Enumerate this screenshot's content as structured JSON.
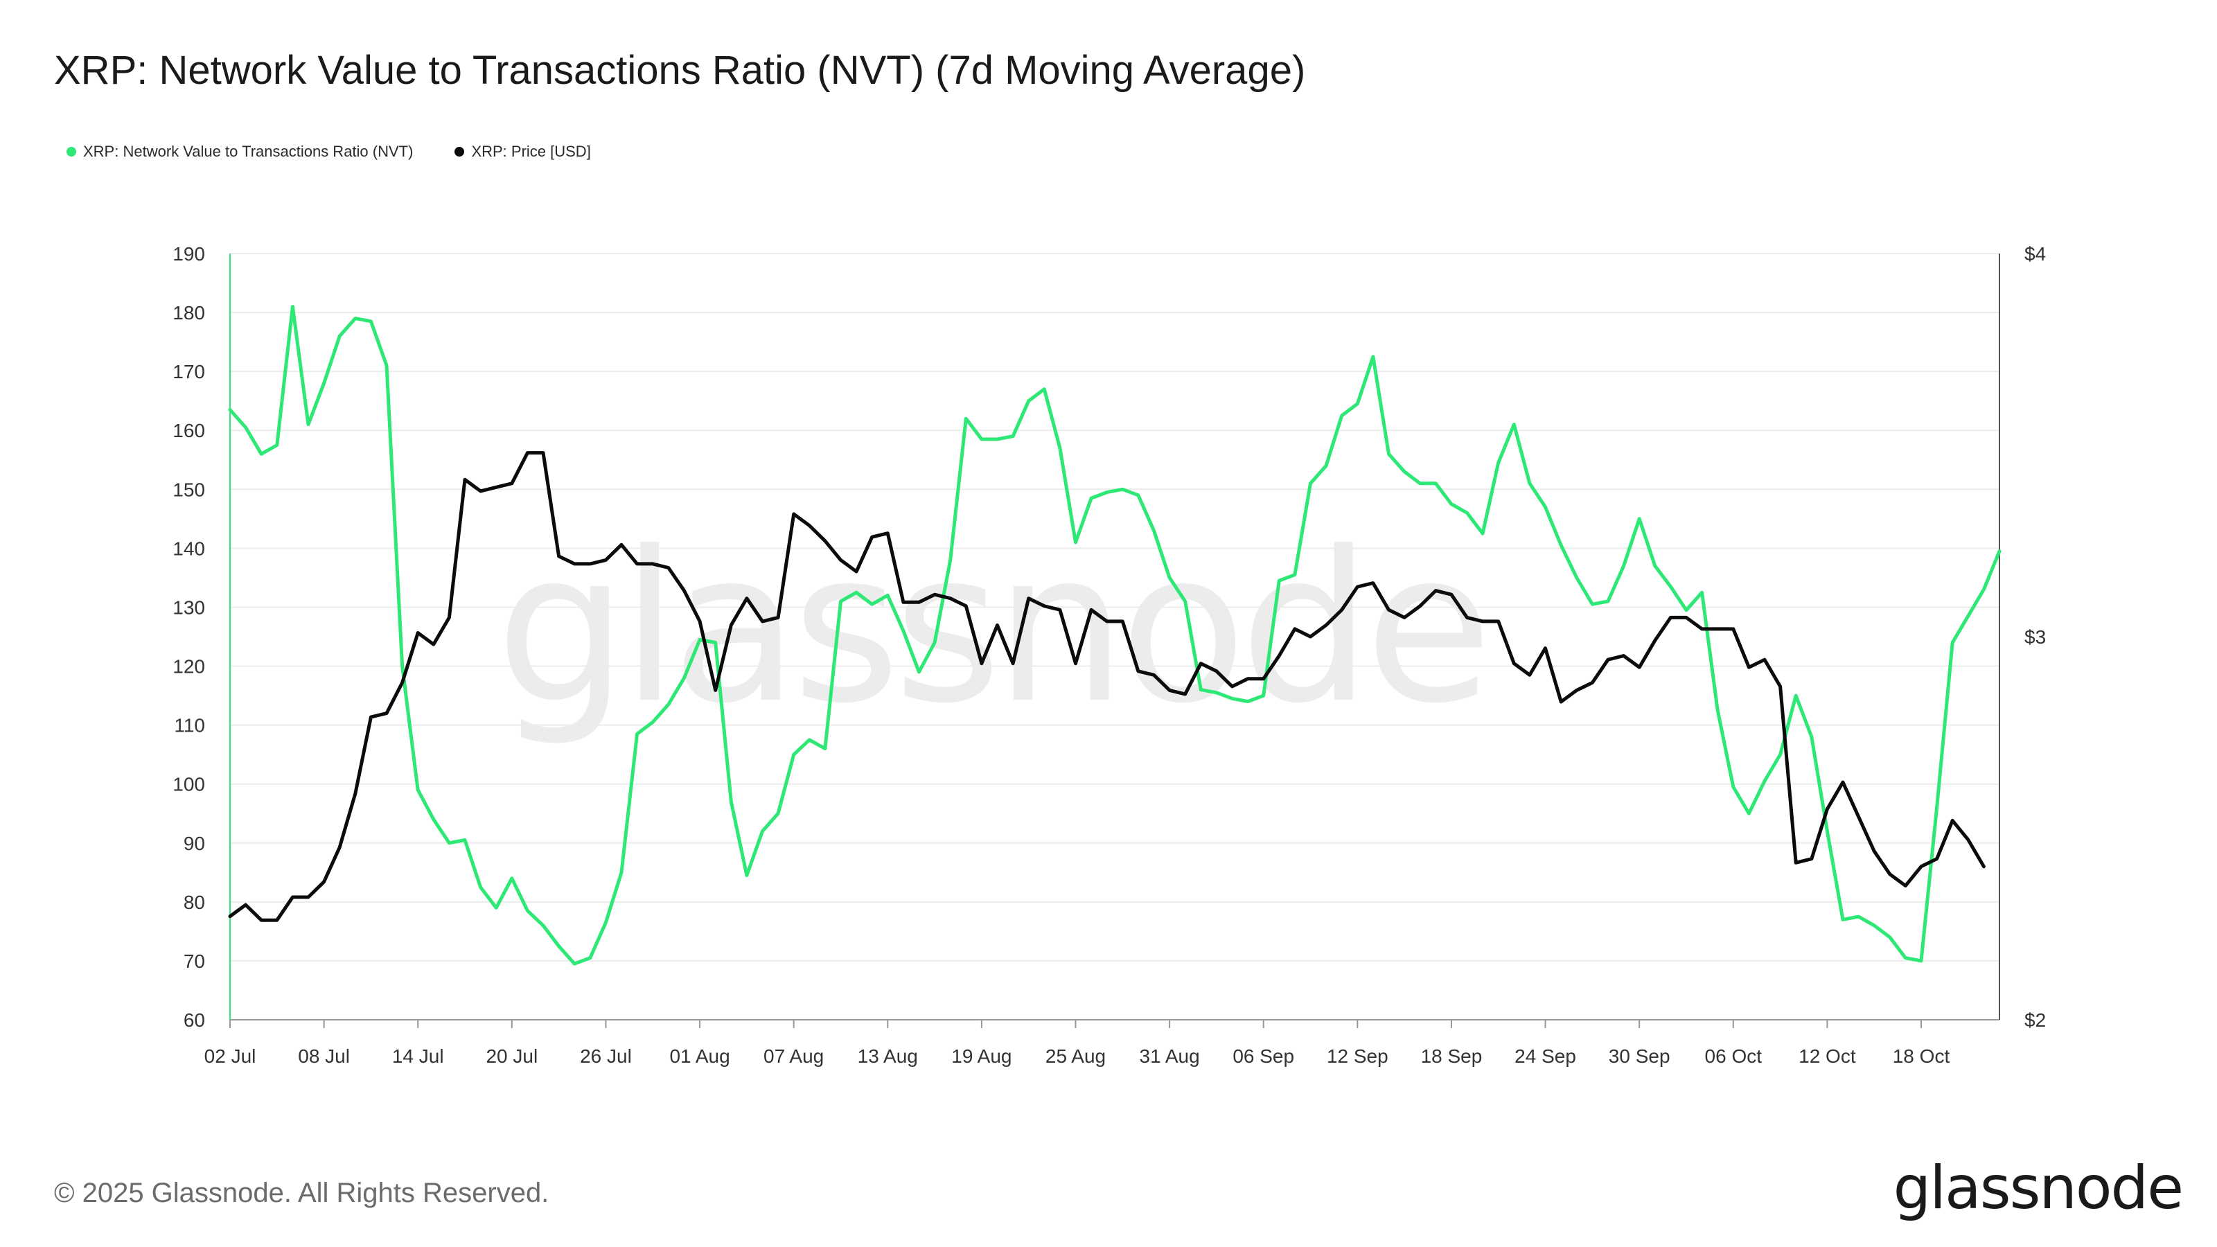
{
  "header": {
    "title": "XRP: Network Value to Transactions Ratio (NVT) (7d Moving Average)"
  },
  "legend": {
    "nvt_label": "XRP: Network Value to Transactions Ratio (NVT)",
    "price_label": "XRP: Price [USD]"
  },
  "colors": {
    "nvt": "#2ee876",
    "price": "#0b0b0b",
    "grid": "#ececec",
    "axis": "#333333"
  },
  "footer": {
    "copyright": "© 2025 Glassnode. All Rights Reserved.",
    "brand": "glassnode"
  },
  "watermark": "glassnode",
  "chart_data": {
    "type": "line",
    "title": "XRP: Network Value to Transactions Ratio (NVT) (7d Moving Average)",
    "x_tick_labels": [
      "02 Jul",
      "08 Jul",
      "14 Jul",
      "20 Jul",
      "26 Jul",
      "01 Aug",
      "07 Aug",
      "13 Aug",
      "19 Aug",
      "25 Aug",
      "31 Aug",
      "06 Sep",
      "12 Sep",
      "18 Sep",
      "24 Sep",
      "30 Sep",
      "06 Oct",
      "12 Oct",
      "18 Oct"
    ],
    "x_start": "2025-07-02",
    "x_end": "2025-10-23",
    "y_left": {
      "ylim": [
        60,
        190
      ],
      "ticks": [
        60,
        70,
        80,
        90,
        100,
        110,
        120,
        130,
        140,
        150,
        160,
        170,
        180,
        190
      ],
      "tick_labels": [
        "60",
        "70",
        "80",
        "90",
        "100",
        "110",
        "120",
        "130",
        "140",
        "150",
        "160",
        "170",
        "180",
        "190"
      ]
    },
    "y_right": {
      "ylim": [
        2,
        4
      ],
      "ticks": [
        2,
        3,
        4
      ],
      "tick_labels": [
        "$2",
        "$3",
        "$4"
      ]
    },
    "grid": true,
    "legend_position": "top-left",
    "series": [
      {
        "name": "XRP: Network Value to Transactions Ratio (NVT)",
        "axis": "left",
        "color": "#2ee876",
        "values": [
          163.5,
          160.5,
          156.0,
          157.5,
          181.0,
          161.0,
          168.0,
          176.0,
          179.0,
          178.5,
          171.0,
          120.0,
          99.0,
          94.0,
          90.0,
          90.5,
          82.5,
          79.0,
          84.0,
          78.5,
          76.0,
          72.5,
          69.5,
          70.5,
          76.5,
          85.0,
          108.5,
          110.5,
          113.5,
          118.0,
          124.5,
          124.0,
          97.0,
          84.5,
          92.0,
          95.0,
          105.0,
          107.5,
          106.0,
          131.0,
          132.5,
          130.5,
          132.0,
          126.0,
          119.0,
          124.0,
          138.0,
          162.0,
          158.5,
          158.5,
          159.0,
          165.0,
          167.0,
          157.0,
          141.0,
          148.5,
          149.5,
          150.0,
          149.0,
          143.0,
          135.0,
          131.0,
          116.0,
          115.5,
          114.5,
          114.0,
          115.0,
          134.5,
          135.5,
          151.0,
          154.0,
          162.5,
          164.5,
          172.5,
          156.0,
          153.0,
          151.0,
          151.0,
          147.5,
          146.0,
          142.5,
          154.5,
          161.0,
          151.0,
          147.0,
          140.5,
          135.0,
          130.5,
          131.0,
          137.0,
          145.0,
          137.0,
          133.5,
          129.5,
          132.5,
          112.5,
          99.5,
          95.0,
          100.5,
          105.0,
          115.0,
          108.0,
          92.0,
          77.0,
          77.5,
          76.0,
          74.0,
          70.5,
          70.0,
          96.0,
          124.0,
          128.5,
          133.0,
          139.5
        ]
      },
      {
        "name": "XRP: Price [USD]",
        "axis": "right",
        "color": "#0b0b0b",
        "values": [
          2.27,
          2.3,
          2.26,
          2.26,
          2.32,
          2.32,
          2.36,
          2.45,
          2.59,
          2.79,
          2.8,
          2.88,
          3.01,
          2.98,
          3.05,
          3.41,
          3.38,
          3.39,
          3.4,
          3.48,
          3.48,
          3.21,
          3.19,
          3.19,
          3.2,
          3.24,
          3.19,
          3.19,
          3.18,
          3.12,
          3.04,
          2.86,
          3.03,
          3.1,
          3.04,
          3.05,
          3.32,
          3.29,
          3.25,
          3.2,
          3.17,
          3.26,
          3.27,
          3.09,
          3.09,
          3.11,
          3.1,
          3.08,
          2.93,
          3.03,
          2.93,
          3.1,
          3.08,
          3.07,
          2.93,
          3.07,
          3.04,
          3.04,
          2.91,
          2.9,
          2.86,
          2.85,
          2.93,
          2.91,
          2.87,
          2.89,
          2.89,
          2.95,
          3.02,
          3.0,
          3.03,
          3.07,
          3.13,
          3.14,
          3.07,
          3.05,
          3.08,
          3.12,
          3.11,
          3.05,
          3.04,
          3.04,
          2.93,
          2.9,
          2.97,
          2.83,
          2.86,
          2.88,
          2.94,
          2.95,
          2.92,
          2.99,
          3.05,
          3.05,
          3.02,
          3.02,
          3.02,
          2.92,
          2.94,
          2.87,
          2.41,
          2.42,
          2.55,
          2.62,
          2.53,
          2.44,
          2.38,
          2.35,
          2.4,
          2.42,
          2.52,
          2.47,
          2.4
        ]
      }
    ]
  }
}
